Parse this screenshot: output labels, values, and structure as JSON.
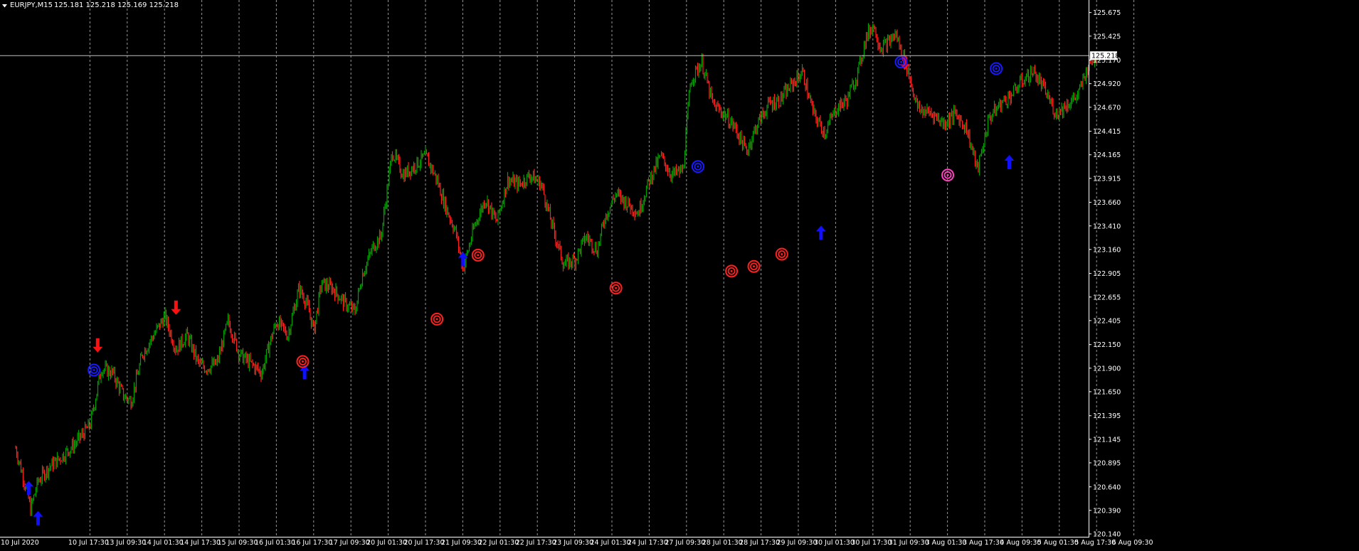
{
  "header": {
    "symbol_caption": "EURJPY,M15",
    "ohlc_caption": "125.181 125.218 125.169 125.218"
  },
  "colors": {
    "background": "#000000",
    "bull_candle": "#00a000",
    "bear_candle": "#ff2020",
    "grid": "#c8c8c8",
    "axis_text": "#ffffff",
    "price_line": "#c0c0c0",
    "signal_buy": "#1010ff",
    "signal_sell": "#ff1010",
    "target_red": "#ff2020",
    "target_blue": "#1a1aff",
    "target_magenta": "#ff40c0"
  },
  "chart_data": {
    "type": "line",
    "title": "EURJPY,M15",
    "ylim": [
      120.14,
      125.68
    ],
    "y_ticks": [
      120.14,
      120.39,
      120.64,
      120.895,
      121.145,
      121.395,
      121.65,
      121.9,
      122.15,
      122.405,
      122.655,
      122.905,
      123.16,
      123.41,
      123.66,
      123.915,
      124.165,
      124.415,
      124.67,
      124.92,
      125.17,
      125.425,
      125.675
    ],
    "y_tick_labels": [
      "120.140",
      "120.390",
      "120.640",
      "120.895",
      "121.145",
      "121.395",
      "121.650",
      "121.900",
      "122.150",
      "122.405",
      "122.655",
      "122.905",
      "123.160",
      "123.410",
      "123.660",
      "123.915",
      "124.165",
      "124.415",
      "124.670",
      "124.920",
      "125.170",
      "125.425",
      "125.675"
    ],
    "x_tick_labels": [
      "10 Jul 2020",
      "10 Jul 17:30",
      "13 Jul 09:30",
      "14 Jul 01:30",
      "14 Jul 17:30",
      "15 Jul 09:30",
      "16 Jul 01:30",
      "16 Jul 17:30",
      "17 Jul 09:30",
      "20 Jul 01:30",
      "20 Jul 17:30",
      "21 Jul 09:30",
      "22 Jul 01:30",
      "22 Jul 17:30",
      "23 Jul 09:30",
      "24 Jul 01:30",
      "24 Jul 17:30",
      "27 Jul 09:30",
      "28 Jul 01:30",
      "28 Jul 17:30",
      "29 Jul 09:30",
      "30 Jul 01:30",
      "30 Jul 17:30",
      "31 Jul 09:30",
      "3 Aug 01:30",
      "3 Aug 17:30",
      "4 Aug 09:30",
      "5 Aug 01:30",
      "5 Aug 17:30",
      "6 Aug 09:30"
    ],
    "current_price": 125.218,
    "current_price_label": "125.218",
    "grid": "vertical dashed",
    "series": [
      {
        "x_index": [
          0,
          0.3,
          0.4,
          0.6,
          0.9,
          1.2,
          1.6,
          2.0,
          2.3,
          2.6,
          2.9,
          3.1,
          3.4,
          3.7,
          4.0,
          4.3,
          4.6,
          4.9,
          5.1,
          5.4,
          5.7,
          6.0,
          6.3,
          6.6,
          6.8,
          7.0,
          7.3,
          7.6,
          7.8,
          8.0,
          8.2,
          8.5,
          8.8,
          9.1,
          9.3,
          9.6,
          9.8,
          10.1,
          10.4,
          10.7,
          11.0,
          11.3,
          11.5,
          11.8,
          12.0,
          12.3,
          12.6,
          12.9,
          13.2,
          13.5,
          13.8,
          14.1,
          14.4,
          14.7,
          15.0,
          15.3,
          15.6,
          15.8,
          16.1,
          16.4,
          16.7,
          17.0,
          17.3,
          17.6,
          17.9,
          18.1,
          18.4,
          18.7,
          19.0,
          19.3,
          19.6,
          19.9,
          20.2,
          20.5,
          20.8,
          21.1,
          21.4,
          21.7,
          22.0,
          22.3,
          22.6,
          22.8,
          23.0,
          23.2,
          23.4,
          23.6,
          23.9,
          24.2,
          24.6,
          24.9,
          25.2,
          25.5,
          25.8,
          26.1,
          26.4,
          26.7,
          27.0,
          27.3,
          27.6,
          27.9,
          28.2,
          28.5,
          28.8,
          29.0
        ],
        "close": [
          121.05,
          120.6,
          120.4,
          120.7,
          120.85,
          120.95,
          121.1,
          121.3,
          121.9,
          121.85,
          121.6,
          121.55,
          122.05,
          122.25,
          122.45,
          122.1,
          122.25,
          121.95,
          121.9,
          121.95,
          122.4,
          122.05,
          121.95,
          121.85,
          122.15,
          122.4,
          122.25,
          122.75,
          122.6,
          122.3,
          122.8,
          122.75,
          122.6,
          122.5,
          122.9,
          123.2,
          123.3,
          124.2,
          123.95,
          124.05,
          124.15,
          123.9,
          123.65,
          123.35,
          122.95,
          123.4,
          123.7,
          123.45,
          123.9,
          123.85,
          123.95,
          123.85,
          123.4,
          123.0,
          123.05,
          123.3,
          123.15,
          123.5,
          123.75,
          123.65,
          123.55,
          123.9,
          124.15,
          123.95,
          124.0,
          124.95,
          125.15,
          124.7,
          124.6,
          124.45,
          124.2,
          124.5,
          124.7,
          124.75,
          124.9,
          125.05,
          124.6,
          124.4,
          124.65,
          124.75,
          125.05,
          125.4,
          125.55,
          125.3,
          125.35,
          125.45,
          125.1,
          124.65,
          124.6,
          124.5,
          124.6,
          124.45,
          124.0,
          124.55,
          124.7,
          124.8,
          124.95,
          125.05,
          124.85,
          124.6,
          124.7,
          124.8,
          125.15,
          125.22
        ]
      }
    ],
    "signals": [
      {
        "type": "buy-arrow",
        "x": 0.35,
        "y": 120.62
      },
      {
        "type": "buy-arrow",
        "x": 0.6,
        "y": 120.3
      },
      {
        "type": "sell-arrow",
        "x": 2.2,
        "y": 122.15
      },
      {
        "type": "sell-arrow",
        "x": 4.3,
        "y": 122.55
      },
      {
        "type": "buy-arrow",
        "x": 7.75,
        "y": 121.85
      },
      {
        "type": "buy-arrow",
        "x": 12.0,
        "y": 123.05
      },
      {
        "type": "buy-arrow",
        "x": 21.6,
        "y": 123.33
      },
      {
        "type": "sell-arrow",
        "x": 23.85,
        "y": 125.15
      },
      {
        "type": "buy-arrow",
        "x": 26.65,
        "y": 124.08
      },
      {
        "type": "target-blue",
        "x": 2.1,
        "y": 121.88
      },
      {
        "type": "target-red",
        "x": 7.7,
        "y": 121.97
      },
      {
        "type": "target-red",
        "x": 11.3,
        "y": 122.42
      },
      {
        "type": "target-red",
        "x": 12.4,
        "y": 123.1
      },
      {
        "type": "target-red",
        "x": 16.1,
        "y": 122.75
      },
      {
        "type": "target-blue",
        "x": 18.3,
        "y": 124.04
      },
      {
        "type": "target-red",
        "x": 19.2,
        "y": 122.93
      },
      {
        "type": "target-red",
        "x": 19.8,
        "y": 122.98
      },
      {
        "type": "target-red",
        "x": 20.55,
        "y": 123.11
      },
      {
        "type": "target-blue",
        "x": 23.75,
        "y": 125.15
      },
      {
        "type": "target-magenta",
        "x": 25.0,
        "y": 123.95
      },
      {
        "type": "target-blue",
        "x": 26.3,
        "y": 125.08
      }
    ]
  }
}
